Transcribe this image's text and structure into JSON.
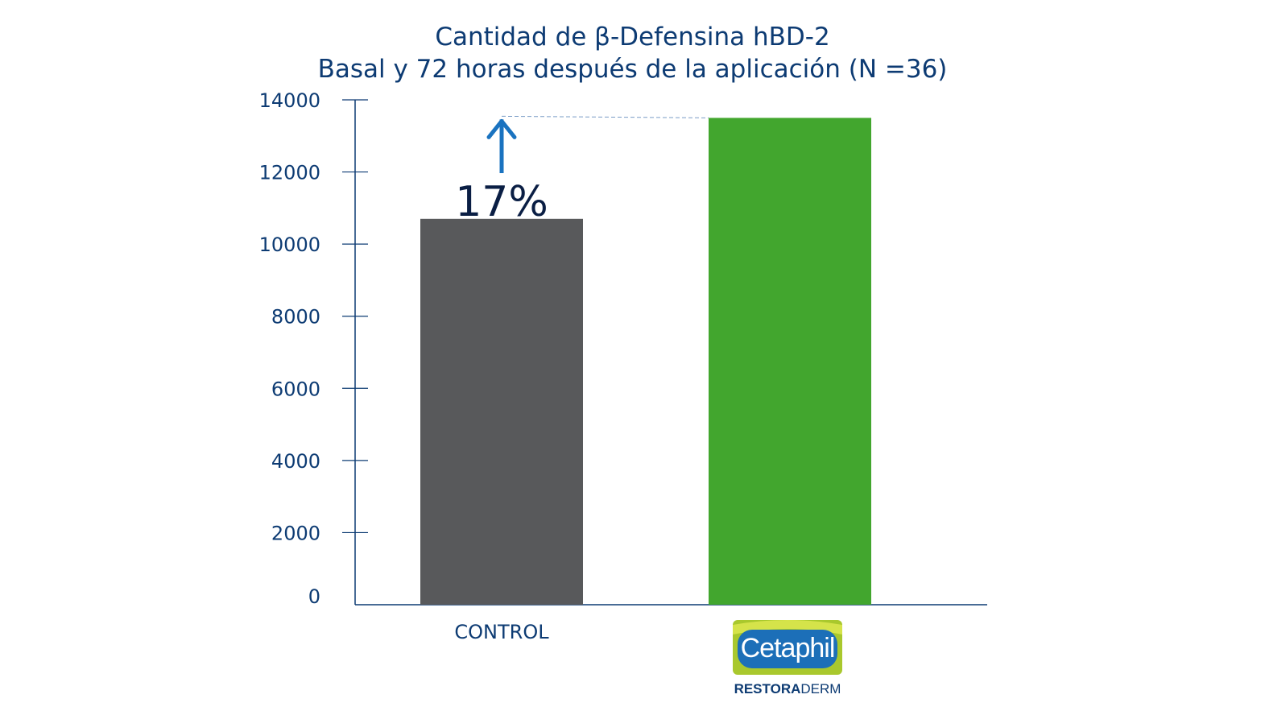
{
  "chart_data": {
    "type": "bar",
    "title": [
      "Cantidad de β-Defensina hBD-2",
      "Basal y 72 horas después de la aplicación (N =36)"
    ],
    "categories": [
      "CONTROL",
      "Cetaphil RESTORADERM"
    ],
    "values": [
      10700,
      13500
    ],
    "colors": [
      "#58595b",
      "#42a62e"
    ],
    "ylim": [
      0,
      14000
    ],
    "yticks": [
      0,
      2000,
      4000,
      6000,
      8000,
      10000,
      12000,
      14000
    ],
    "annotation": {
      "text": "17%",
      "arrow": "up"
    },
    "axis_color": "#0d3b73",
    "arrow_color": "#1a73c0"
  },
  "logo": {
    "brand": "Cetaphil",
    "sub_bold": "RESTORA",
    "sub_light": "DERM",
    "badge_blue": "#1c6fb8",
    "badge_green": "#a9c82d",
    "badge_lime": "#d5e34a"
  }
}
